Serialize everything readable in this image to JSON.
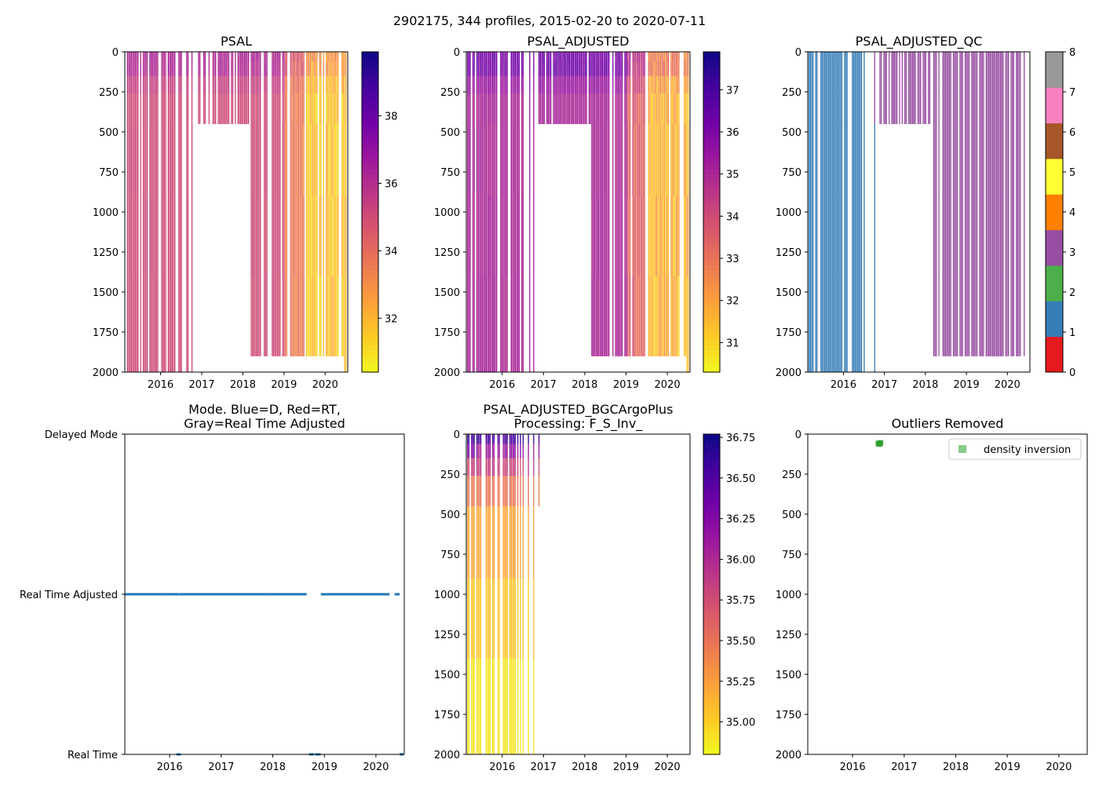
{
  "suptitle": "2902175, 344 profiles, 2015-02-20 to 2020-07-11",
  "chart_data": [
    {
      "id": "psal",
      "type": "heatmap",
      "title": "PSAL",
      "xlabel": "",
      "ylabel": "",
      "xlim": [
        2015.13,
        2020.55
      ],
      "ylim": [
        2000,
        0
      ],
      "xticks": [
        2016,
        2017,
        2018,
        2019,
        2020
      ],
      "yticks": [
        0,
        250,
        500,
        750,
        1000,
        1250,
        1500,
        1750,
        2000
      ],
      "colormap": "plasma_r",
      "clim": [
        30.4,
        39.9
      ],
      "colorbar_ticks": [
        32,
        34,
        36,
        38
      ]
    },
    {
      "id": "psal_adjusted",
      "type": "heatmap",
      "title": "PSAL_ADJUSTED",
      "xlabel": "",
      "ylabel": "",
      "xlim": [
        2015.13,
        2020.55
      ],
      "ylim": [
        2000,
        0
      ],
      "xticks": [
        2016,
        2017,
        2018,
        2019,
        2020
      ],
      "yticks": [
        0,
        250,
        500,
        750,
        1000,
        1250,
        1500,
        1750,
        2000
      ],
      "colormap": "plasma_r",
      "clim": [
        30.3,
        37.9
      ],
      "colorbar_ticks": [
        31,
        32,
        33,
        34,
        35,
        36,
        37
      ]
    },
    {
      "id": "psal_adjusted_qc",
      "type": "heatmap",
      "title": "PSAL_ADJUSTED_QC",
      "xlabel": "",
      "ylabel": "",
      "xlim": [
        2015.13,
        2020.55
      ],
      "ylim": [
        2000,
        0
      ],
      "xticks": [
        2016,
        2017,
        2018,
        2019,
        2020
      ],
      "yticks": [
        0,
        250,
        500,
        750,
        1000,
        1250,
        1500,
        1750,
        2000
      ],
      "colormap": "qc_categorical",
      "clim": [
        0,
        8
      ],
      "colorbar_ticks": [
        0,
        1,
        2,
        3,
        4,
        5,
        6,
        7,
        8
      ],
      "qc_colors": [
        "#e41a1c",
        "#377eb8",
        "#4daf4a",
        "#984ea3",
        "#ff7f00",
        "#ffff33",
        "#a65628",
        "#f781bf",
        "#999999"
      ]
    },
    {
      "id": "mode",
      "type": "scatter",
      "title_lines": [
        "Mode. Blue=D, Red=RT,",
        "Gray=Real Time Adjusted"
      ],
      "xlabel": "",
      "ylabel": "",
      "xlim": [
        2015.13,
        2020.55
      ],
      "ylim": [
        0,
        2
      ],
      "xticks": [
        2016,
        2017,
        2018,
        2019,
        2020
      ],
      "y_categories": [
        "Real Time",
        "Real Time Adjusted",
        "Delayed Mode"
      ],
      "marker_color": "#1f77b4",
      "series": [
        {
          "name": "Real Time Adjusted",
          "y": 1,
          "segments": [
            [
              2015.14,
              2016.16
            ],
            [
              2016.2,
              2016.7
            ],
            [
              2016.72,
              2018.65
            ],
            [
              2018.95,
              2020.25
            ],
            [
              2020.38,
              2020.45
            ]
          ]
        },
        {
          "name": "Real Time",
          "y": 0,
          "segments": [
            [
              2016.15,
              2016.2
            ],
            [
              2018.72,
              2018.78
            ],
            [
              2018.84,
              2018.92
            ],
            [
              2020.48,
              2020.52
            ]
          ]
        }
      ]
    },
    {
      "id": "psal_adjusted_bgc",
      "type": "heatmap",
      "title_lines": [
        "PSAL_ADJUSTED_BGCArgoPlus",
        "Processing: F_S_Inv_"
      ],
      "xlabel": "",
      "ylabel": "",
      "xlim": [
        2015.13,
        2020.55
      ],
      "ylim": [
        2000,
        0
      ],
      "xticks": [
        2016,
        2017,
        2018,
        2019,
        2020
      ],
      "yticks": [
        0,
        250,
        500,
        750,
        1000,
        1250,
        1500,
        1750,
        2000
      ],
      "colormap": "plasma_r",
      "clim": [
        34.8,
        36.77
      ],
      "colorbar_ticks": [
        35.0,
        35.25,
        35.5,
        35.75,
        36.0,
        36.25,
        36.5,
        36.75
      ],
      "colorbar_tick_labels": [
        "35.00",
        "35.25",
        "35.50",
        "35.75",
        "36.00",
        "36.25",
        "36.50",
        "36.75"
      ]
    },
    {
      "id": "outliers",
      "type": "scatter",
      "title": "Outliers Removed",
      "xlabel": "",
      "ylabel": "",
      "xlim": [
        2015.13,
        2020.55
      ],
      "ylim": [
        2000,
        0
      ],
      "xticks": [
        2016,
        2017,
        2018,
        2019,
        2020
      ],
      "yticks": [
        0,
        250,
        500,
        750,
        1000,
        1250,
        1500,
        1750,
        2000
      ],
      "legend": {
        "position": "top-right",
        "entries": [
          {
            "label": "density inversion",
            "color": "#2ca02c"
          }
        ]
      },
      "points": [
        {
          "x": 2016.5,
          "y": 58
        },
        {
          "x": 2016.52,
          "y": 62
        },
        {
          "x": 2016.54,
          "y": 55
        }
      ]
    }
  ]
}
